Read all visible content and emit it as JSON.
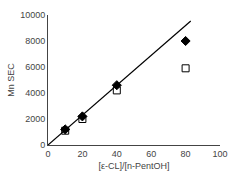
{
  "chart_data": {
    "type": "scatter",
    "xlabel": "[ε-CL]/[n-PentOH]",
    "ylabel": "Mn SEC",
    "xlim": [
      0,
      100
    ],
    "ylim": [
      0,
      10000
    ],
    "xticks": [
      0,
      20,
      40,
      60,
      80,
      100
    ],
    "yticks": [
      0,
      2000,
      4000,
      6000,
      8000,
      10000
    ],
    "grid": false,
    "series": [
      {
        "type": "line",
        "x": [
          0,
          83
        ],
        "values": [
          0,
          9540
        ],
        "color": "#000000",
        "line_style": "solid"
      },
      {
        "type": "scatter",
        "x": [
          10,
          20,
          40,
          80
        ],
        "values": [
          1100,
          2000,
          4200,
          5900
        ],
        "color": "black",
        "marker": "square-open"
      },
      {
        "type": "scatter",
        "x": [
          10,
          20,
          40,
          80
        ],
        "values": [
          1200,
          2200,
          4600,
          8000
        ],
        "color": "black",
        "marker": "diamond"
      }
    ]
  }
}
